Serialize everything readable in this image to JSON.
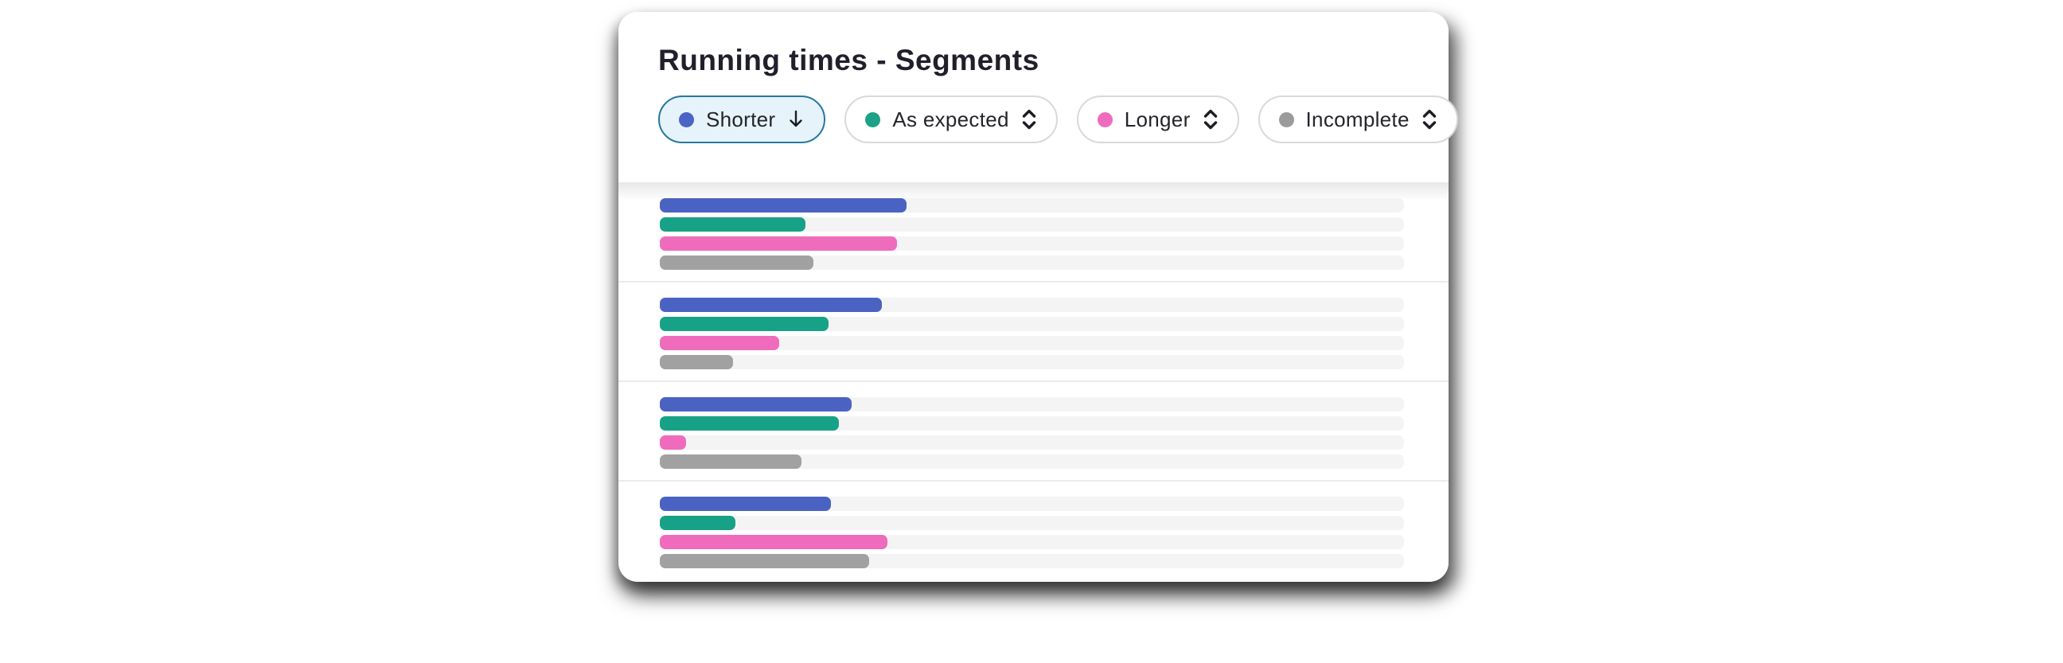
{
  "card": {
    "title": "Running times - Segments",
    "selected_filter": "Shorter",
    "filters": [
      {
        "label": "Shorter",
        "dot_color": "#4C64C6",
        "state": "selected",
        "sort_icon": "arrow-down"
      },
      {
        "label": "As expected",
        "dot_color": "#1BA287",
        "state": "default",
        "sort_icon": "chevron-up-down"
      },
      {
        "label": "Longer",
        "dot_color": "#EF6CBC",
        "state": "default",
        "sort_icon": "chevron-up-down"
      },
      {
        "label": "Incomplete",
        "dot_color": "#9B9B9B",
        "state": "default",
        "sort_icon": "chevron-up-down"
      }
    ]
  },
  "colors": {
    "selected_chip_bg": "#E6F3FB",
    "selected_chip_border": "#27789D",
    "chip_border": "#D9D9DC",
    "bar_track": "#F4F4F5",
    "group_separator": "#EBEBEE",
    "title_text": "#20202C",
    "chip_text": "#24242C"
  },
  "chart_data": {
    "type": "bar",
    "orientation": "horizontal",
    "title": "Running times - Segments",
    "legend_position": "top-filter-chips",
    "grid": false,
    "value_unit": "percent_of_track_width",
    "xlim": [
      0,
      100
    ],
    "series": [
      {
        "key": "shorter",
        "name": "Shorter",
        "color": "#4A63C3"
      },
      {
        "key": "as_expected",
        "name": "As expected",
        "color": "#17A287"
      },
      {
        "key": "longer",
        "name": "Longer",
        "color": "#EF6CBC"
      },
      {
        "key": "incomplete",
        "name": "Incomplete",
        "color": "#A1A1A1"
      }
    ],
    "groups": [
      {
        "name": "group-1",
        "values": [
          33.2,
          19.6,
          31.9,
          20.6
        ]
      },
      {
        "name": "group-2",
        "values": [
          29.8,
          22.7,
          16.0,
          9.8
        ]
      },
      {
        "name": "group-3",
        "values": [
          25.8,
          24.1,
          3.5,
          19.0
        ]
      },
      {
        "name": "group-4",
        "values": [
          23.0,
          10.2,
          30.6,
          28.1
        ]
      }
    ]
  }
}
